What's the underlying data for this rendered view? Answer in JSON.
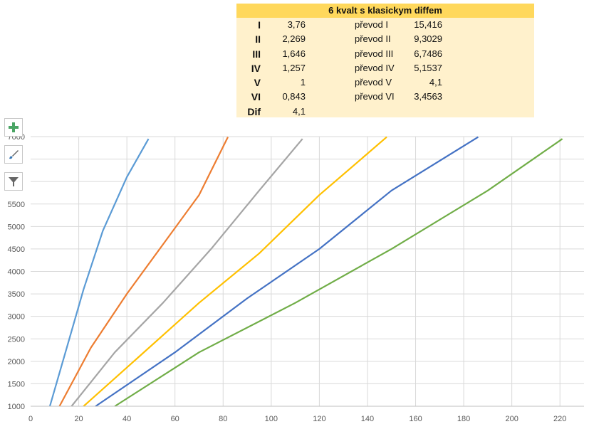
{
  "table": {
    "title": "6 kvalt s klasickym diffem",
    "rows": [
      {
        "gear": "I",
        "ratio": "3,76",
        "plabel": "převod I",
        "pval": "15,416"
      },
      {
        "gear": "II",
        "ratio": "2,269",
        "plabel": "převod II",
        "pval": "9,3029"
      },
      {
        "gear": "III",
        "ratio": "1,646",
        "plabel": "převod III",
        "pval": "6,7486"
      },
      {
        "gear": "IV",
        "ratio": "1,257",
        "plabel": "převod IV",
        "pval": "5,1537"
      },
      {
        "gear": "V",
        "ratio": "1",
        "plabel": "převod V",
        "pval": "4,1"
      },
      {
        "gear": "VI",
        "ratio": "0,843",
        "plabel": "převod VI",
        "pval": "3,4563"
      },
      {
        "gear": "Dif",
        "ratio": "4,1",
        "plabel": "",
        "pval": ""
      }
    ]
  },
  "chart_buttons": [
    {
      "name": "chart-elements-button",
      "icon": "plus-icon",
      "color": "#4aa564"
    },
    {
      "name": "chart-styles-button",
      "icon": "brush-icon",
      "color": "#3a78b5"
    },
    {
      "name": "chart-filters-button",
      "icon": "filter-icon",
      "color": "#666666"
    }
  ],
  "chart_data": {
    "type": "line",
    "xlim": [
      0,
      230
    ],
    "ylim": [
      1000,
      7000
    ],
    "x_ticks": [
      0,
      20,
      40,
      60,
      80,
      100,
      120,
      140,
      160,
      180,
      200,
      220
    ],
    "y_ticks": [
      1000,
      1500,
      2000,
      2500,
      3000,
      3500,
      4000,
      4500,
      5000,
      5500,
      6000,
      6500,
      7000
    ],
    "y_tick_labels": [
      "1000",
      "1500",
      "2000",
      "2500",
      "3000",
      "3500",
      "4000",
      "4500",
      "5000",
      "5500",
      "",
      "",
      "7000"
    ],
    "grid": true,
    "series": [
      {
        "color": "#5b9bd5",
        "points": [
          [
            8,
            1000
          ],
          [
            15,
            2300
          ],
          [
            22,
            3600
          ],
          [
            30,
            4900
          ],
          [
            40,
            6100
          ],
          [
            49,
            6950
          ]
        ]
      },
      {
        "color": "#ed7d31",
        "points": [
          [
            12,
            1000
          ],
          [
            25,
            2300
          ],
          [
            40,
            3500
          ],
          [
            55,
            4600
          ],
          [
            70,
            5700
          ],
          [
            82,
            6990
          ]
        ]
      },
      {
        "color": "#a5a5a5",
        "points": [
          [
            17,
            1000
          ],
          [
            35,
            2200
          ],
          [
            55,
            3300
          ],
          [
            75,
            4500
          ],
          [
            95,
            5800
          ],
          [
            113,
            6950
          ]
        ]
      },
      {
        "color": "#ffc000",
        "points": [
          [
            22,
            1000
          ],
          [
            45,
            2100
          ],
          [
            70,
            3300
          ],
          [
            95,
            4400
          ],
          [
            120,
            5700
          ],
          [
            148,
            6990
          ]
        ]
      },
      {
        "color": "#4472c4",
        "points": [
          [
            27,
            1000
          ],
          [
            60,
            2200
          ],
          [
            90,
            3400
          ],
          [
            120,
            4500
          ],
          [
            150,
            5800
          ],
          [
            186,
            6990
          ]
        ]
      },
      {
        "color": "#70ad47",
        "points": [
          [
            35,
            1000
          ],
          [
            70,
            2200
          ],
          [
            110,
            3300
          ],
          [
            150,
            4500
          ],
          [
            190,
            5800
          ],
          [
            221,
            6950
          ]
        ]
      }
    ]
  }
}
